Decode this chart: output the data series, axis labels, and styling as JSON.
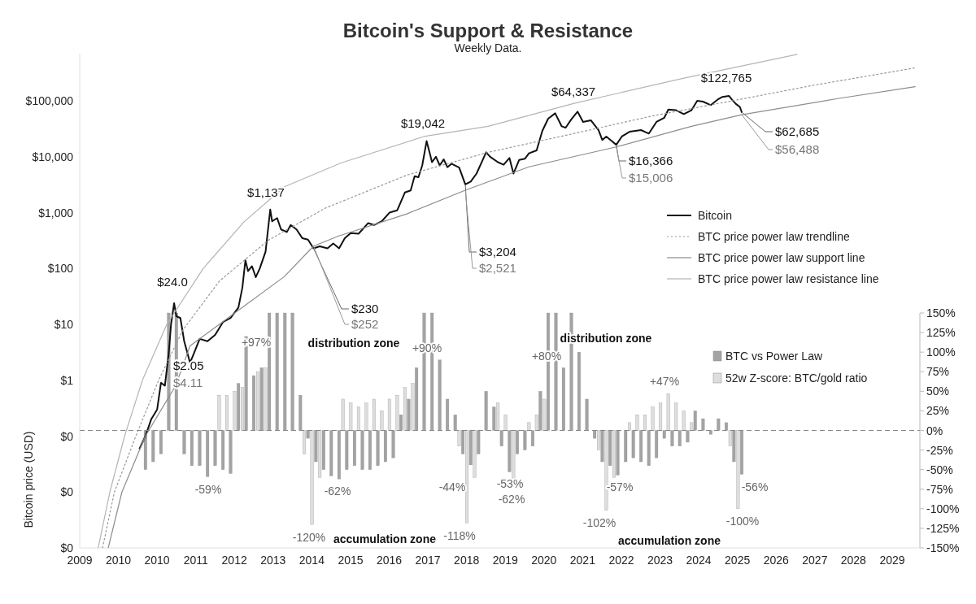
{
  "chart_data": {
    "type": "line",
    "title": "Bitcoin's Support & Resistance",
    "subtitle": "Weekly Data.",
    "ylabel": "Bitcoin price (USD)",
    "log": true,
    "legend": "right",
    "xlim": [
      "2009-01-01",
      "2030-09-13"
    ],
    "xticks": [
      {
        "value": "2009-01-01",
        "label": "2009"
      },
      {
        "value": "2010-01-01",
        "label": "2010"
      },
      {
        "value": "2010-12-31",
        "label": "2010"
      },
      {
        "value": "2011-12-31",
        "label": "2011"
      },
      {
        "value": "2012-12-30",
        "label": "2012"
      },
      {
        "value": "2013-12-30",
        "label": "2013"
      },
      {
        "value": "2014-12-30",
        "label": "2014"
      },
      {
        "value": "2015-12-30",
        "label": "2015"
      },
      {
        "value": "2016-12-29",
        "label": "2016"
      },
      {
        "value": "2017-12-29",
        "label": "2017"
      },
      {
        "value": "2018-12-29",
        "label": "2018"
      },
      {
        "value": "2019-12-29",
        "label": "2019"
      },
      {
        "value": "2020-12-28",
        "label": "2020"
      },
      {
        "value": "2021-12-28",
        "label": "2021"
      },
      {
        "value": "2022-12-28",
        "label": "2022"
      },
      {
        "value": "2023-12-28",
        "label": "2023"
      },
      {
        "value": "2024-12-27",
        "label": "2024"
      },
      {
        "value": "2025-12-27",
        "label": "2025"
      },
      {
        "value": "2026-12-27",
        "label": "2026"
      },
      {
        "value": "2027-12-27",
        "label": "2027"
      },
      {
        "value": "2028-12-26",
        "label": "2028"
      },
      {
        "value": "2029-12-26",
        "label": "2029"
      }
    ],
    "ylim": [
      0.001,
      700000
    ],
    "yticks": [
      {
        "value": 0.001,
        "label": "$0"
      },
      {
        "value": 0.01,
        "label": "$0"
      },
      {
        "value": 0.1,
        "label": "$0"
      },
      {
        "value": 1,
        "label": "$1"
      },
      {
        "value": 10,
        "label": "$10"
      },
      {
        "value": 100,
        "label": "$100"
      },
      {
        "value": 1000,
        "label": "$1,000"
      },
      {
        "value": 10000,
        "label": "$10,000"
      },
      {
        "value": 100000,
        "label": "$100,000"
      }
    ],
    "y2lim": [
      -150,
      150
    ],
    "y2ticks": [
      {
        "value": 150,
        "label": "150%"
      },
      {
        "value": 125,
        "label": "125%"
      },
      {
        "value": 100,
        "label": "100%"
      },
      {
        "value": 75,
        "label": "75%"
      },
      {
        "value": 50,
        "label": "50%"
      },
      {
        "value": 25,
        "label": "25%"
      },
      {
        "value": 0,
        "label": "0%"
      },
      {
        "value": -25,
        "label": "-25%"
      },
      {
        "value": -50,
        "label": "-50%"
      },
      {
        "value": -75,
        "label": "-75%"
      },
      {
        "value": -100,
        "label": "-100%"
      },
      {
        "value": -125,
        "label": "-125%"
      },
      {
        "value": -150,
        "label": "-150%"
      }
    ],
    "ref_lines": [
      {
        "axis": "y2",
        "value": 0,
        "color": "#888888",
        "line_style": "dashed"
      }
    ],
    "series": [
      {
        "name": "BTC vs Power Law",
        "type": "bar",
        "axis": "y2",
        "color": "#a3a3a3",
        "x": [
          "2010-09-13",
          "2010-11-24",
          "2011-02-06",
          "2011-04-20",
          "2011-07-01",
          "2011-09-13",
          "2011-11-24",
          "2012-02-06",
          "2012-04-20",
          "2012-07-01",
          "2012-09-13",
          "2012-11-24",
          "2013-02-06",
          "2013-04-20",
          "2013-07-01",
          "2013-09-13",
          "2013-11-24",
          "2014-02-06",
          "2014-04-20",
          "2014-07-01",
          "2014-09-13",
          "2014-11-24",
          "2015-02-06",
          "2015-04-20",
          "2015-07-01",
          "2015-09-13",
          "2015-11-24",
          "2016-02-06",
          "2016-04-20",
          "2016-07-01",
          "2016-09-13",
          "2016-11-24",
          "2017-02-06",
          "2017-04-20",
          "2017-07-01",
          "2017-09-13",
          "2017-11-24",
          "2018-02-06",
          "2018-04-20",
          "2018-07-01",
          "2018-09-13",
          "2018-11-24",
          "2019-02-06",
          "2019-04-20",
          "2019-07-01",
          "2019-09-13",
          "2019-11-24",
          "2020-02-06",
          "2020-04-20",
          "2020-07-01",
          "2020-09-13",
          "2020-11-24",
          "2021-02-06",
          "2021-04-20",
          "2021-07-01",
          "2021-09-13",
          "2021-11-24",
          "2022-02-06",
          "2022-04-20",
          "2022-07-01",
          "2022-09-13",
          "2022-11-24",
          "2023-02-06",
          "2023-04-20",
          "2023-07-01",
          "2023-09-13",
          "2023-11-24",
          "2024-02-06",
          "2024-04-20",
          "2024-07-01",
          "2024-09-13",
          "2024-11-24",
          "2025-02-06",
          "2025-04-20",
          "2025-07-01",
          "2025-09-13",
          "2025-11-24",
          "2026-02-06"
        ],
        "values": [
          -50,
          -40,
          -30,
          150,
          150,
          -30,
          -45,
          -45,
          -59,
          -45,
          -50,
          -55,
          60,
          120,
          70,
          80,
          150,
          150,
          150,
          150,
          45,
          -10,
          -40,
          -50,
          -58,
          -62,
          -50,
          -45,
          -50,
          -50,
          -45,
          -40,
          -35,
          20,
          40,
          80,
          150,
          150,
          90,
          40,
          20,
          -30,
          -44,
          -30,
          50,
          30,
          -20,
          -53,
          -30,
          -25,
          -20,
          50,
          150,
          150,
          80,
          150,
          100,
          40,
          -10,
          -40,
          -45,
          -57,
          -40,
          -35,
          -40,
          -45,
          -35,
          -10,
          -20,
          -20,
          -15,
          25,
          15,
          -5,
          15,
          10,
          -40,
          -56
        ]
      },
      {
        "name": "52w Z-score: BTC/gold ratio",
        "type": "bar",
        "axis": "y2",
        "color": "#dedede",
        "x": [
          "2012-08-08",
          "2012-10-20",
          "2013-01-01",
          "2013-03-15",
          "2013-08-08",
          "2013-10-20",
          "2014-10-20",
          "2015-01-01",
          "2015-03-15",
          "2015-10-20",
          "2016-01-01",
          "2016-03-15",
          "2016-05-27",
          "2016-08-08",
          "2016-10-20",
          "2017-01-01",
          "2017-03-15",
          "2017-05-27",
          "2017-08-08",
          "2018-10-20",
          "2019-01-01",
          "2019-03-15",
          "2019-10-20",
          "2020-01-01",
          "2020-03-15",
          "2020-08-08",
          "2020-10-20",
          "2021-01-01",
          "2022-05-27",
          "2022-08-08",
          "2022-10-20",
          "2023-03-15",
          "2023-05-27",
          "2023-08-08",
          "2023-10-20",
          "2024-01-01",
          "2024-03-15",
          "2024-05-27",
          "2024-08-08",
          "2024-10-20",
          "2025-10-20",
          "2026-01-01"
        ],
        "values": [
          45,
          45,
          50,
          55,
          75,
          80,
          -30,
          -120,
          -60,
          40,
          35,
          30,
          35,
          40,
          25,
          40,
          45,
          55,
          60,
          -20,
          -118,
          -60,
          35,
          20,
          -62,
          10,
          20,
          40,
          -25,
          -102,
          -60,
          10,
          20,
          20,
          30,
          35,
          47,
          35,
          25,
          10,
          -20,
          -100
        ]
      },
      {
        "name": "Bitcoin",
        "color": "#111111",
        "line_style": "solid",
        "x": [
          "2010-07-20",
          "2010-09-12",
          "2010-11-06",
          "2011-01-01",
          "2011-02-06",
          "2011-03-15",
          "2011-04-20",
          "2011-05-12",
          "2011-06-10",
          "2011-07-01",
          "2011-08-08",
          "2011-09-13",
          "2011-11-07",
          "2011-12-13",
          "2012-02-06",
          "2012-04-20",
          "2012-07-01",
          "2012-09-13",
          "2012-11-24",
          "2013-02-06",
          "2013-03-15",
          "2013-04-13",
          "2013-05-08",
          "2013-06-14",
          "2013-07-20",
          "2013-08-26",
          "2013-10-20",
          "2013-12-03",
          "2013-12-21",
          "2014-02-06",
          "2014-03-15",
          "2014-05-08",
          "2014-06-14",
          "2014-08-08",
          "2014-10-01",
          "2014-11-24",
          "2015-01-15",
          "2015-03-15",
          "2015-05-27",
          "2015-07-20",
          "2015-09-13",
          "2015-11-06",
          "2016-01-01",
          "2016-03-15",
          "2016-06-14",
          "2016-08-08",
          "2016-10-20",
          "2017-01-01",
          "2017-03-15",
          "2017-05-27",
          "2017-07-20",
          "2017-08-26",
          "2017-10-01",
          "2017-11-06",
          "2017-12-17",
          "2018-01-19",
          "2018-02-06",
          "2018-03-15",
          "2018-04-20",
          "2018-05-27",
          "2018-07-01",
          "2018-08-08",
          "2018-10-20",
          "2018-12-17",
          "2019-02-06",
          "2019-04-02",
          "2019-05-27",
          "2019-07-01",
          "2019-08-08",
          "2019-10-20",
          "2019-12-13",
          "2020-02-06",
          "2020-03-15",
          "2020-05-08",
          "2020-07-01",
          "2020-08-08",
          "2020-10-20",
          "2020-12-13",
          "2021-02-06",
          "2021-04-13",
          "2021-06-14",
          "2021-07-20",
          "2021-09-13",
          "2021-11-10",
          "2022-01-01",
          "2022-03-15",
          "2022-05-27",
          "2022-07-01",
          "2022-08-08",
          "2022-10-01",
          "2022-11-10",
          "2023-01-01",
          "2023-03-15",
          "2023-07-01",
          "2023-09-13",
          "2023-11-24",
          "2024-02-06",
          "2024-03-15",
          "2024-05-27",
          "2024-08-08",
          "2024-10-20",
          "2024-12-13",
          "2025-02-06",
          "2025-04-20",
          "2025-07-01",
          "2025-08-08",
          "2025-10-08",
          "2025-11-06",
          "2025-12-13",
          "2026-01-19",
          "2026-02-06"
        ],
        "values": [
          0.06,
          0.1,
          0.2,
          0.3,
          0.9,
          0.8,
          3,
          10,
          24,
          14,
          13,
          5,
          2.05,
          3,
          5.5,
          5,
          6.5,
          11,
          13,
          20,
          45,
          140,
          90,
          110,
          70,
          100,
          200,
          1137,
          700,
          800,
          500,
          450,
          600,
          500,
          350,
          330,
          230,
          250,
          230,
          280,
          230,
          350,
          430,
          420,
          650,
          600,
          700,
          1000,
          1100,
          2300,
          2500,
          4500,
          4300,
          7000,
          19042,
          11000,
          8000,
          10000,
          7000,
          9000,
          6500,
          7500,
          6400,
          3204,
          3600,
          5000,
          8500,
          12000,
          10000,
          8000,
          7200,
          9500,
          5000,
          8800,
          9200,
          11500,
          13000,
          29000,
          48000,
          60000,
          35000,
          33000,
          47000,
          64337,
          42000,
          45000,
          30000,
          20000,
          23000,
          19000,
          16366,
          23000,
          28000,
          30000,
          26000,
          42000,
          50000,
          70000,
          68000,
          58000,
          68000,
          100000,
          97000,
          84000,
          108000,
          118000,
          122765,
          105000,
          88000,
          78000,
          62685
        ]
      },
      {
        "name": "BTC price power law trendline",
        "color": "#999999",
        "line_style": "dotted",
        "x": [
          "2009-08-04",
          "2009-11-24",
          "2010-06-14",
          "2011-01-15",
          "2011-09-02",
          "2012-08-12",
          "2013-11-14",
          "2015-05-05",
          "2017-06-14",
          "2019-07-20",
          "2021-08-26",
          "2023-10-01",
          "2025-11-06",
          "2027-12-13",
          "2030-07-31"
        ],
        "values": [
          0.001,
          0.01,
          0.1,
          1,
          8,
          60,
          320,
          1200,
          4700,
          12000,
          25000,
          53000,
          100000,
          190000,
          390000
        ]
      },
      {
        "name": "BTC price power law support line",
        "color": "#8c8c8c",
        "line_style": "solid",
        "x": [
          "2009-09-27",
          "2010-02-03",
          "2010-09-12",
          "2011-06-24",
          "2011-11-07",
          "2012-12-13",
          "2014-04-16",
          "2015-01-15",
          "2015-09-06",
          "2017-06-14",
          "2018-12-17",
          "2020-08-08",
          "2022-11-10",
          "2024-10-20",
          "2026-02-06",
          "2028-07-31",
          "2030-07-31"
        ],
        "values": [
          0.001,
          0.01,
          0.1,
          0.8,
          4.11,
          15,
          72,
          252,
          380,
          950,
          2521,
          6600,
          15006,
          35000,
          56488,
          110000,
          180000
        ]
      },
      {
        "name": "BTC price power law resistance line",
        "color": "#b5b5b5",
        "line_style": "solid",
        "x": [
          "2009-06-24",
          "2009-10-12",
          "2010-02-28",
          "2010-08-15",
          "2011-04-02",
          "2012-03-10",
          "2013-03-29",
          "2014-04-16",
          "2015-10-05",
          "2017-11-21",
          "2019-07-20",
          "2021-10-16",
          "2024-08-26",
          "2027-07-13"
        ],
        "values": [
          0.001,
          0.01,
          0.1,
          1,
          10,
          100,
          680,
          2900,
          7800,
          23000,
          35000,
          91000,
          260000,
          680000
        ]
      }
    ],
    "annotations": [
      {
        "text": "$24.0",
        "x": "2011-06-10",
        "y": 24
      },
      {
        "text": "$2.05",
        "x": "2011-11-07",
        "y": 2.05
      },
      {
        "text": "$4.11",
        "x": "2011-11-07",
        "y": 4.11
      },
      {
        "text": "$1,137",
        "x": "2013-12-03",
        "y": 1137
      },
      {
        "text": "$230",
        "x": "2015-01-15",
        "y": 230
      },
      {
        "text": "$252",
        "x": "2015-01-15",
        "y": 252
      },
      {
        "text": "$19,042",
        "x": "2017-12-17",
        "y": 19042
      },
      {
        "text": "$3,204",
        "x": "2018-12-17",
        "y": 3204
      },
      {
        "text": "$2,521",
        "x": "2018-12-17",
        "y": 2521
      },
      {
        "text": "$64,337",
        "x": "2021-11-10",
        "y": 64337
      },
      {
        "text": "$16,366",
        "x": "2022-11-10",
        "y": 16366
      },
      {
        "text": "$15,006",
        "x": "2022-11-10",
        "y": 15006
      },
      {
        "text": "$122,765",
        "x": "2025-10-08",
        "y": 122765
      },
      {
        "text": "$62,685",
        "x": "2026-02-06",
        "y": 62685
      },
      {
        "text": "$56,488",
        "x": "2026-02-06",
        "y": 56488
      },
      "+97%",
      "+90%",
      "+80%",
      "+47%",
      "-59%",
      "-62%",
      "-120%",
      "-44%",
      "-118%",
      "-53%",
      "-62%",
      "-57%",
      "-102%",
      "-56%",
      "-100%",
      "distribution zone",
      "distribution zone",
      "accumulation zone",
      "accumulation zone"
    ]
  }
}
